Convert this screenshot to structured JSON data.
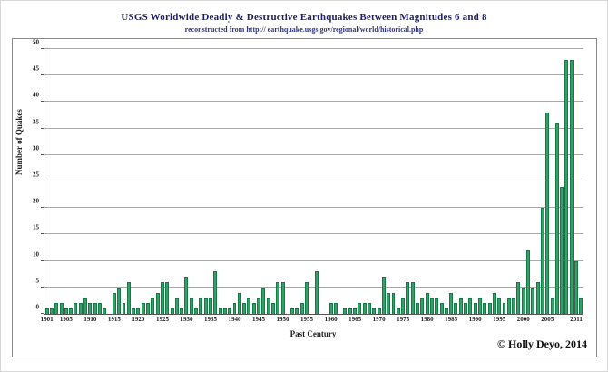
{
  "header": {
    "title": "USGS Worldwide Deadly & Destructive Earthquakes Between Magnitudes 6 and 8",
    "subtitle": "reconstructed from http:// earthquake.usgs.gov/regional/world/historical.php"
  },
  "footer": {
    "copyright": "© Holly Deyo, 2014"
  },
  "chart_data": {
    "type": "bar",
    "title": "USGS Worldwide Deadly & Destructive Earthquakes Between Magnitudes 6 and 8",
    "xlabel": "Past Century",
    "ylabel": "Number of Quakes",
    "ylim": [
      0,
      50
    ],
    "ytick_step": 5,
    "grid": true,
    "legend": "none",
    "bar_color": "#33a066",
    "bar_edge_color": "#157a45",
    "grid_color": "#a9a9a9",
    "x_tick_labels": [
      "1901",
      "1905",
      "1910",
      "1915",
      "1920",
      "1925",
      "1930",
      "1935",
      "1940",
      "1945",
      "1950",
      "1955",
      "1960",
      "1965",
      "1970",
      "1975",
      "1980",
      "1985",
      "1990",
      "1995",
      "2000",
      "2005",
      "2011"
    ],
    "years": [
      1901,
      1902,
      1903,
      1904,
      1905,
      1906,
      1907,
      1908,
      1909,
      1910,
      1911,
      1912,
      1913,
      1914,
      1915,
      1916,
      1917,
      1918,
      1919,
      1920,
      1921,
      1922,
      1923,
      1924,
      1925,
      1926,
      1927,
      1928,
      1929,
      1930,
      1931,
      1932,
      1933,
      1934,
      1935,
      1936,
      1937,
      1938,
      1939,
      1940,
      1941,
      1942,
      1943,
      1944,
      1945,
      1946,
      1947,
      1948,
      1949,
      1950,
      1951,
      1952,
      1953,
      1954,
      1955,
      1956,
      1957,
      1958,
      1959,
      1960,
      1961,
      1962,
      1963,
      1964,
      1965,
      1966,
      1967,
      1968,
      1969,
      1970,
      1971,
      1972,
      1973,
      1974,
      1975,
      1976,
      1977,
      1978,
      1979,
      1980,
      1981,
      1982,
      1983,
      1984,
      1985,
      1986,
      1987,
      1988,
      1989,
      1990,
      1991,
      1992,
      1993,
      1994,
      1995,
      1996,
      1997,
      1998,
      1999,
      2000,
      2001,
      2002,
      2003,
      2004,
      2005,
      2006,
      2007,
      2008,
      2009,
      2010,
      2011,
      2012
    ],
    "values": [
      1,
      1,
      2,
      2,
      1,
      1,
      2,
      2,
      3,
      2,
      2,
      2,
      1,
      0,
      4,
      5,
      2,
      6,
      1,
      1,
      2,
      2,
      3,
      4,
      6,
      6,
      1,
      3,
      1,
      7,
      3,
      1,
      3,
      3,
      3,
      8,
      1,
      1,
      1,
      2,
      4,
      2,
      3,
      2,
      3,
      5,
      3,
      2,
      6,
      6,
      0,
      1,
      1,
      2,
      6,
      0,
      8,
      0,
      0,
      2,
      2,
      0,
      1,
      1,
      1,
      2,
      2,
      2,
      1,
      1,
      7,
      4,
      4,
      1,
      3,
      6,
      6,
      2,
      3,
      4,
      3,
      3,
      2,
      1,
      4,
      2,
      3,
      2,
      3,
      2,
      3,
      2,
      2,
      4,
      3,
      2,
      3,
      3,
      6,
      5,
      12,
      5,
      6,
      20,
      38,
      3,
      36,
      24,
      48,
      48,
      10,
      3
    ]
  }
}
